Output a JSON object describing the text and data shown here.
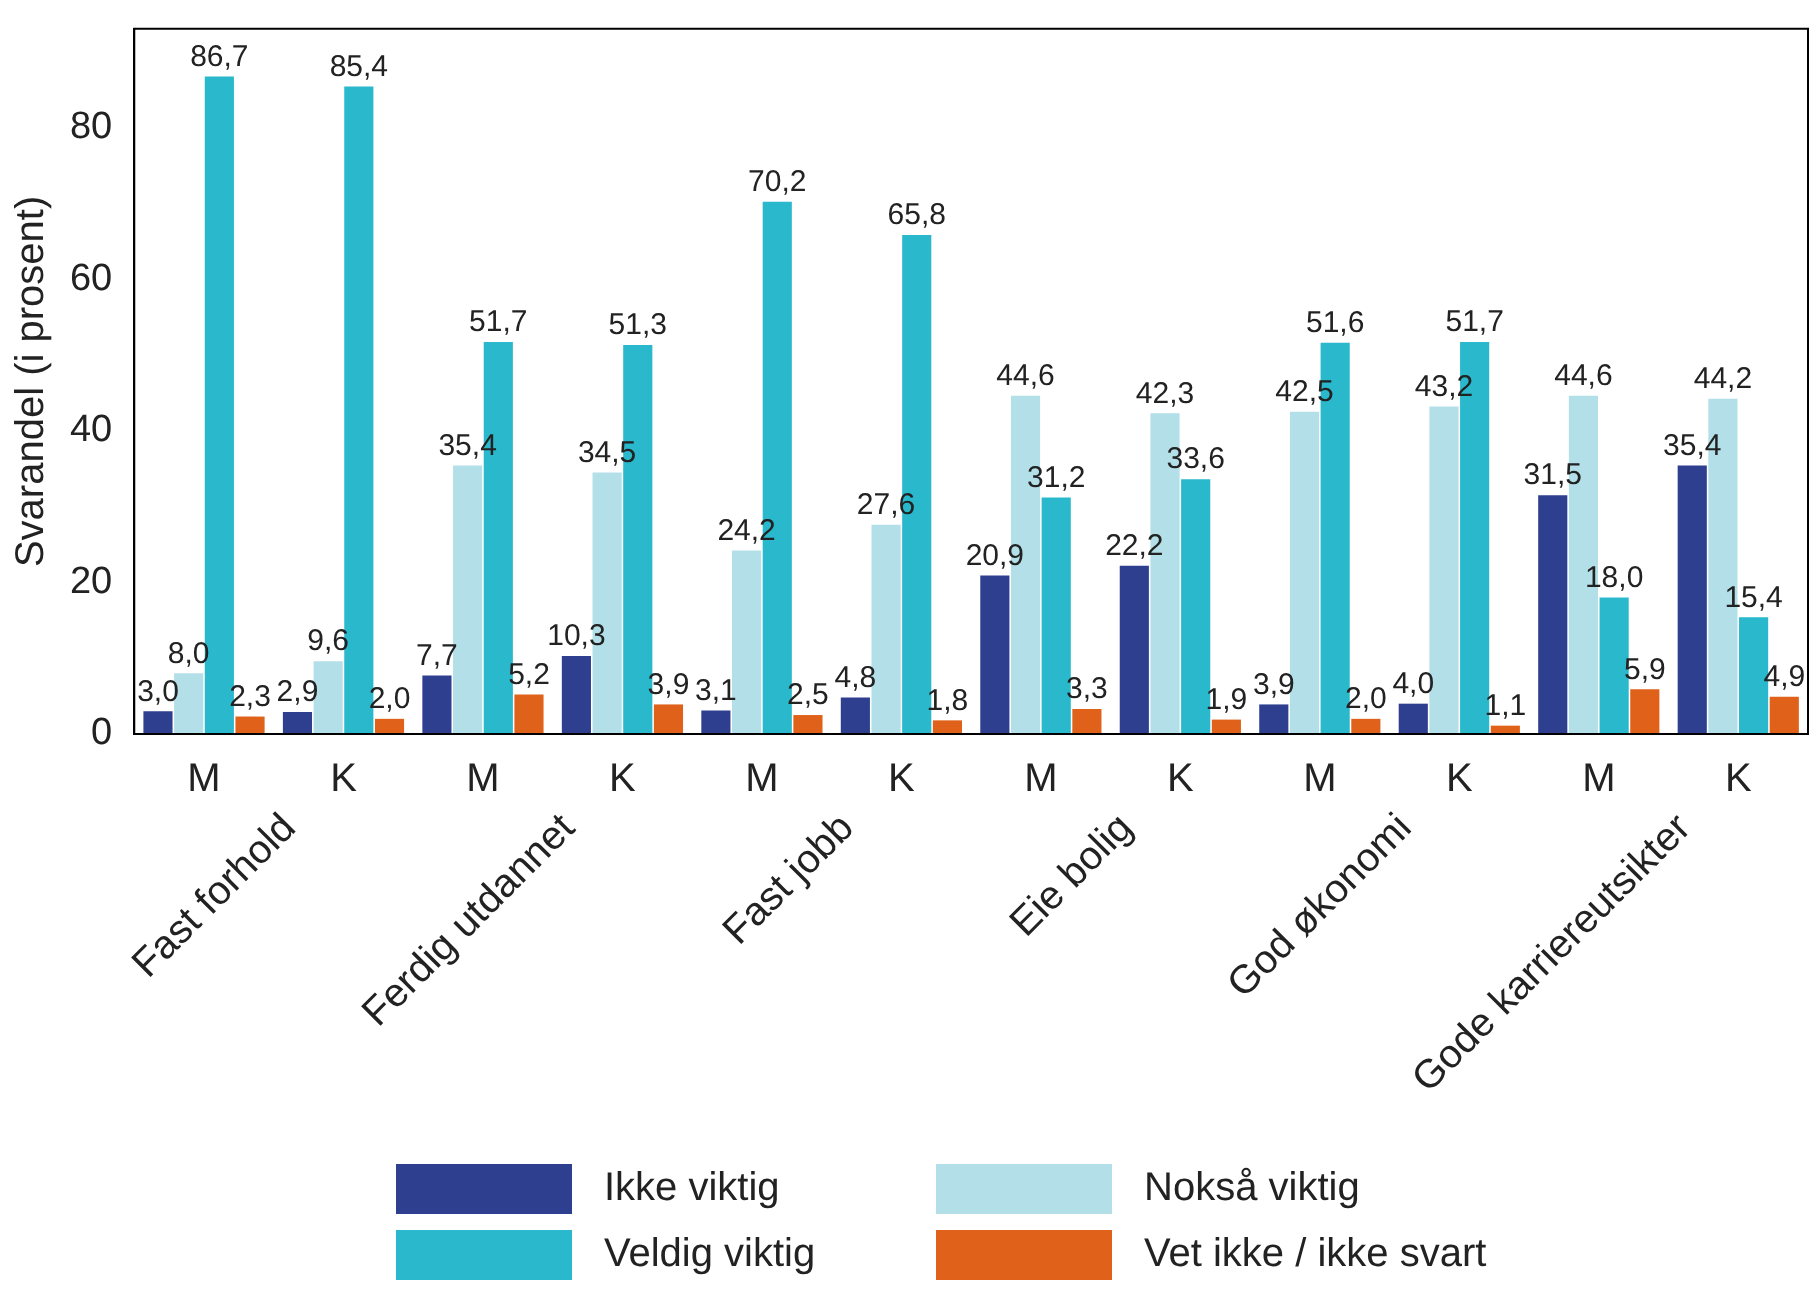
{
  "chart_data": {
    "type": "bar",
    "ylabel": "Svarandel (i prosent)",
    "categories": [
      "M",
      "K",
      "M",
      "K",
      "M",
      "K",
      "M",
      "K",
      "M",
      "K",
      "M",
      "K"
    ],
    "annotations": [
      "Fast forhold",
      "Ferdig utdannet",
      "Fast jobb",
      "Eie bolig",
      "God økonomi",
      "Gode karriereutsikter"
    ],
    "series": [
      {
        "name": "Ikke viktig",
        "color": "#2e3f8f",
        "values": [
          3.0,
          2.9,
          7.7,
          10.3,
          3.1,
          4.8,
          20.9,
          22.2,
          3.9,
          4.0,
          31.5,
          35.4
        ],
        "value_labels": [
          "3,0",
          "2,9",
          "7,7",
          "10,3",
          "3,1",
          "4,8",
          "20,9",
          "22,2",
          "3,9",
          "4,0",
          "31,5",
          "35,4"
        ]
      },
      {
        "name": "Nokså viktig",
        "color": "#b3dfe8",
        "values": [
          8.0,
          9.6,
          35.4,
          34.5,
          24.2,
          27.6,
          44.6,
          42.3,
          42.5,
          43.2,
          44.6,
          44.2
        ],
        "value_labels": [
          "8,0",
          "9,6",
          "35,4",
          "34,5",
          "24,2",
          "27,6",
          "44,6",
          "42,3",
          "42,5",
          "43,2",
          "44,6",
          "44,2"
        ]
      },
      {
        "name": "Veldig viktig",
        "color": "#29b8cc",
        "values": [
          86.7,
          85.4,
          51.7,
          51.3,
          70.2,
          65.8,
          31.2,
          33.6,
          51.6,
          51.7,
          18.0,
          15.4
        ],
        "value_labels": [
          "86,7",
          "85,4",
          "51,7",
          "51,3",
          "70,2",
          "65,8",
          "31,2",
          "33,6",
          "51,6",
          "51,7",
          "18,0",
          "15,4"
        ]
      },
      {
        "name": "Vet ikke / ikke svart",
        "color": "#e0621a",
        "values": [
          2.3,
          2.0,
          5.2,
          3.9,
          2.5,
          1.8,
          3.3,
          1.9,
          2.0,
          1.1,
          5.9,
          4.9
        ],
        "value_labels": [
          "2,3",
          "2,0",
          "5,2",
          "3,9",
          "2,5",
          "1,8",
          "3,3",
          "1,9",
          "2,0",
          "1,1",
          "5,9",
          "4,9"
        ]
      }
    ],
    "ylim": [
      0,
      93
    ],
    "yticks": [
      0,
      20,
      40,
      60,
      80
    ],
    "grid": false,
    "legend": "bottom"
  }
}
